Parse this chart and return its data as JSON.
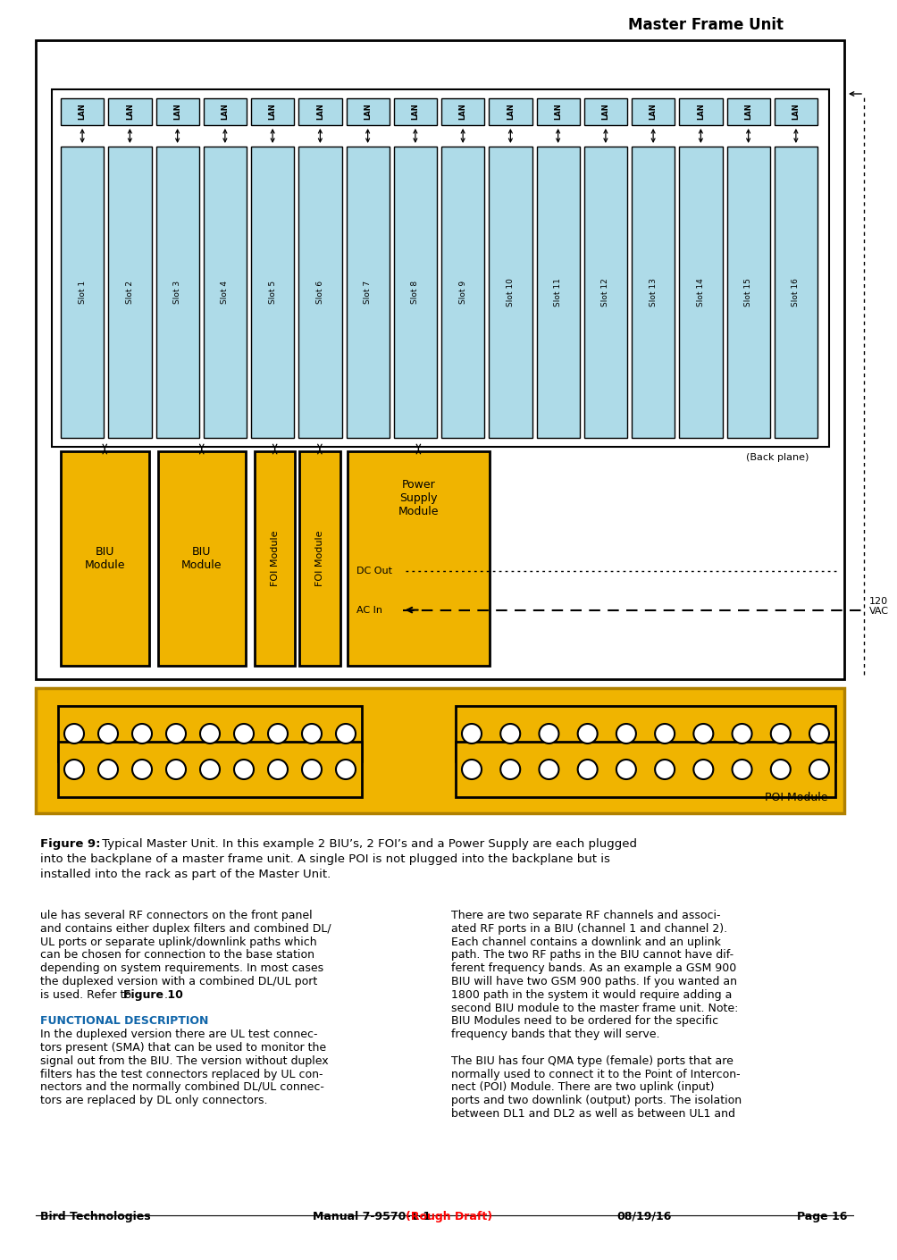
{
  "title": "Master Frame Unit",
  "slots": [
    "Slot 1",
    "Slot 2",
    "Slot 3",
    "Slot 4",
    "Slot 5",
    "Slot 6",
    "Slot 7",
    "Slot 8",
    "Slot 9",
    "Slot 10",
    "Slot 11",
    "Slot 12",
    "Slot 13",
    "Slot 14",
    "Slot 15",
    "Slot 16"
  ],
  "slot_color": "#aedbe8",
  "module_color": "#f0b400",
  "poi_color": "#f0b400",
  "poi_border": "#c89000",
  "backplane_label": "(Back plane)",
  "ac_label": "120\nVAC",
  "poi_label": "POI Module",
  "figure_caption_bold": "Figure 9:",
  "figure_caption_normal": " Typical Master Unit. In this example 2 BIU’s, 2 FOI’s and a Power Supply are each plugged",
  "figure_caption_line2": "into the backplane of a master frame unit. A single POI is not plugged into the backplane but is",
  "figure_caption_line3": "installed into the rack as part of the Master Unit.",
  "footer_left": "Bird Technologies",
  "footer_center_black": "Manual 7-9570-1-1",
  "footer_center_red": "(Rough Draft)",
  "footer_date": "08/19/16",
  "footer_page": "Page 16",
  "body_left_lines": [
    "ule has several RF connectors on the front panel",
    "and contains either duplex filters and combined DL/",
    "UL ports or separate uplink/downlink paths which",
    "can be chosen for connection to the base station",
    "depending on system requirements. In most cases",
    "the duplexed version with a combined DL/UL port",
    "is used. Refer to Figure 10.",
    "",
    "FUNCTIONAL DESCRIPTION",
    "In the duplexed version there are UL test connec-",
    "tors present (SMA) that can be used to monitor the",
    "signal out from the BIU. The version without duplex",
    "filters has the test connectors replaced by UL con-",
    "nectors and the normally combined DL/UL connec-",
    "tors are replaced by DL only connectors."
  ],
  "body_right_lines": [
    "There are two separate RF channels and associ-",
    "ated RF ports in a BIU (channel 1 and channel 2).",
    "Each channel contains a downlink and an uplink",
    "path. The two RF paths in the BIU cannot have dif-",
    "ferent frequency bands. As an example a GSM 900",
    "BIU will have two GSM 900 paths. If you wanted an",
    "1800 path in the system it would require adding a",
    "second BIU module to the master frame unit. Note:",
    "BIU Modules need to be ordered for the specific",
    "frequency bands that they will serve.",
    "",
    "The BIU has four QMA type (female) ports that are",
    "normally used to connect it to the Point of Intercon-",
    "nect (POI) Module. There are two uplink (input)",
    "ports and two downlink (output) ports. The isolation",
    "between DL1 and DL2 as well as between UL1 and"
  ],
  "bold_line_idx": 8,
  "refer_bold": "Figure 10"
}
